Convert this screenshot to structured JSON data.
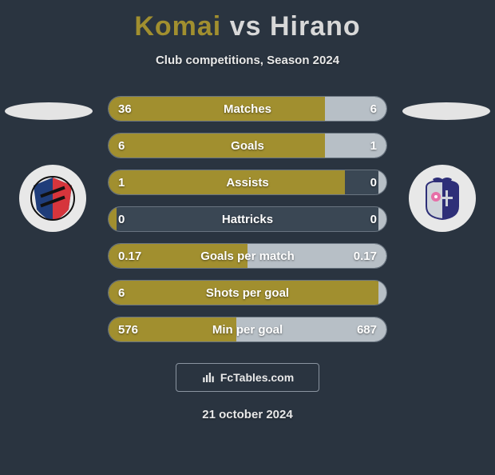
{
  "title": {
    "player1": "Komai",
    "vs": "vs",
    "player2": "Hirano",
    "player1_color": "#a18f2f",
    "vs_color": "#d8d8d8",
    "player2_color": "#d8d8d8",
    "fontsize": 34
  },
  "subtitle": "Club competitions, Season 2024",
  "background_color": "#2a3440",
  "crest_left": {
    "bg": "#e8e8e8",
    "primary": "#d6353c",
    "secondary": "#1f3d7a",
    "tertiary": "#111111"
  },
  "crest_right": {
    "bg": "#e8e8e8",
    "primary": "#e66fa8",
    "secondary": "#2e2f78",
    "tertiary": "#cfd4da"
  },
  "bars": {
    "track_bg": "#3a4754",
    "track_border": "#697480",
    "left_fill": "#a18f2f",
    "right_fill": "#b7bfc6",
    "label_color": "#ffffff",
    "value_color": "#ffffff",
    "fontsize": 15,
    "height": 32,
    "radius": 16,
    "rows": [
      {
        "label": "Matches",
        "left": "36",
        "right": "6",
        "left_pct": 78,
        "right_pct": 22
      },
      {
        "label": "Goals",
        "left": "6",
        "right": "1",
        "left_pct": 78,
        "right_pct": 22
      },
      {
        "label": "Assists",
        "left": "1",
        "right": "0",
        "left_pct": 85,
        "right_pct": 3
      },
      {
        "label": "Hattricks",
        "left": "0",
        "right": "0",
        "left_pct": 3,
        "right_pct": 3
      },
      {
        "label": "Goals per match",
        "left": "0.17",
        "right": "0.17",
        "left_pct": 50,
        "right_pct": 50
      },
      {
        "label": "Shots per goal",
        "left": "6",
        "right": "",
        "left_pct": 97,
        "right_pct": 3
      },
      {
        "label": "Min per goal",
        "left": "576",
        "right": "687",
        "left_pct": 46,
        "right_pct": 54
      }
    ]
  },
  "brand": "FcTables.com",
  "date": "21 october 2024"
}
